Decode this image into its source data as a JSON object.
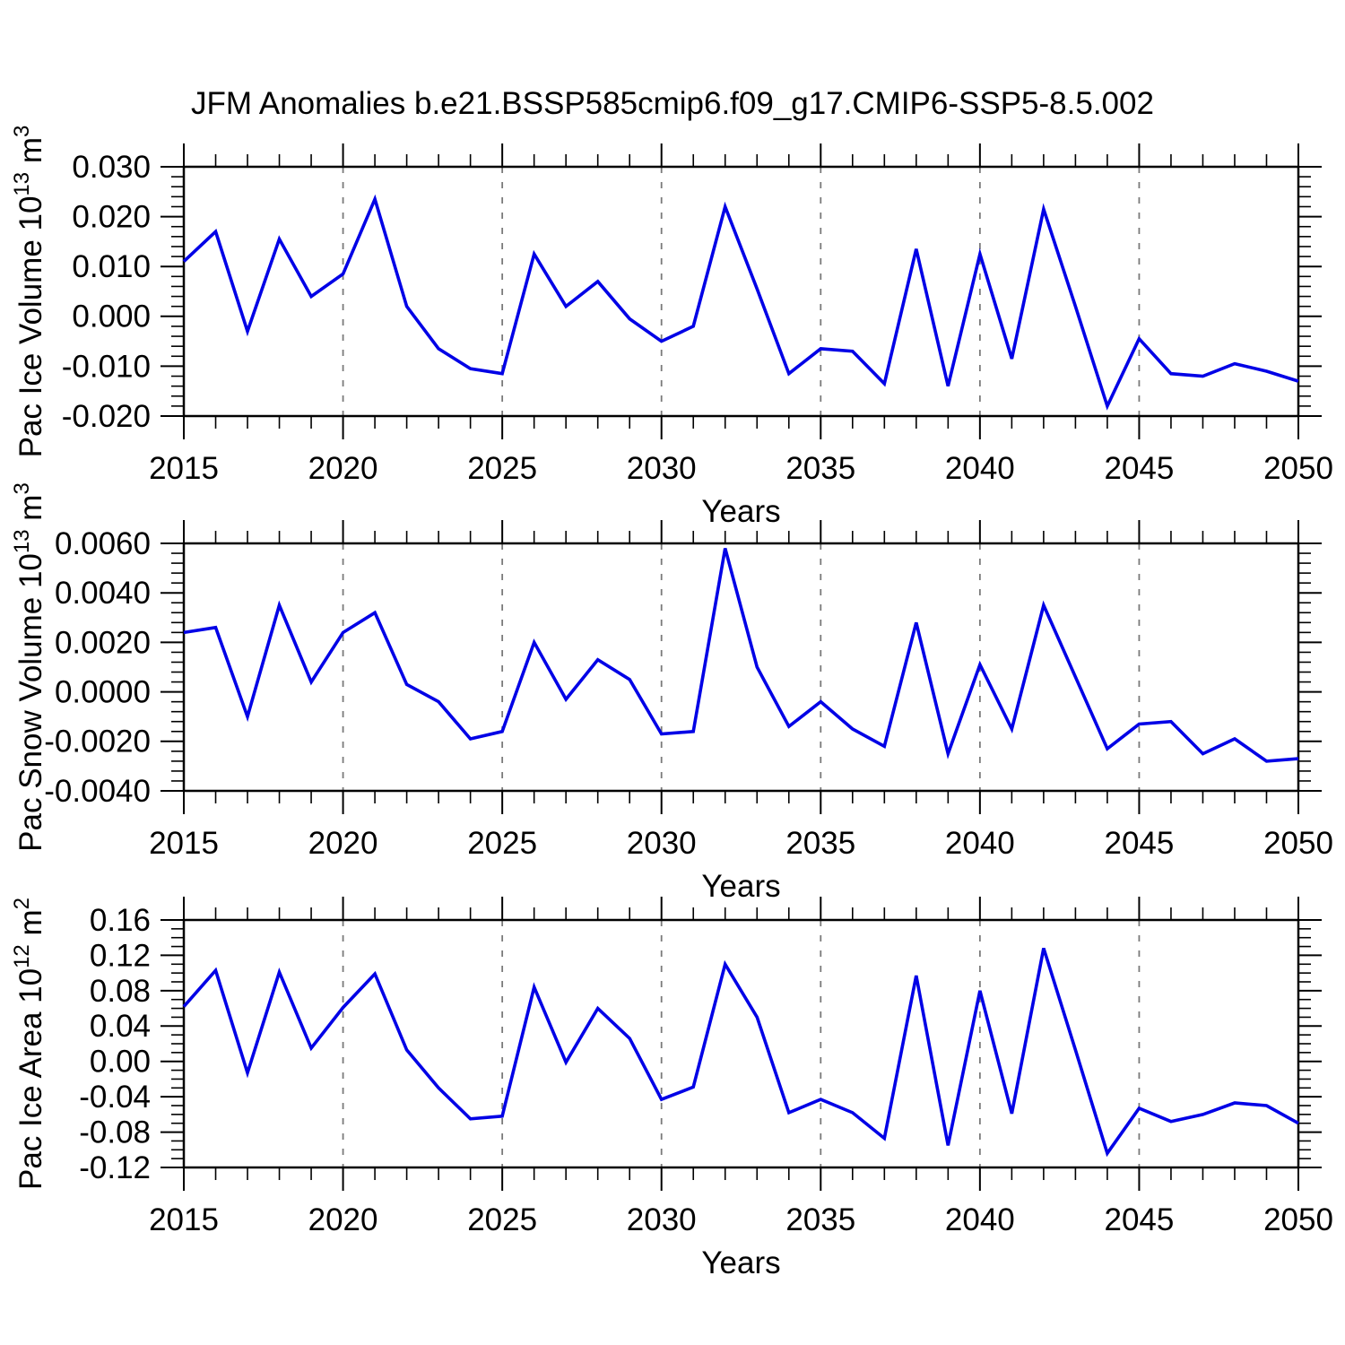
{
  "title": "JFM Anomalies b.e21.BSSP585cmip6.f09_g17.CMIP6-SSP5-8.5.002",
  "colors": {
    "line": "#0000e6",
    "axis": "#000000",
    "grid": "#7a7a7a",
    "background": "#ffffff"
  },
  "x_axis": {
    "label": "Years",
    "range": [
      2015,
      2050
    ],
    "major_tick_values": [
      2015,
      2020,
      2025,
      2030,
      2035,
      2040,
      2045,
      2050
    ],
    "major_tick_labels": [
      "2015",
      "2020",
      "2025",
      "2030",
      "2035",
      "2040",
      "2045",
      "2050"
    ],
    "minor_step": 1,
    "grid_values": [
      2020,
      2025,
      2030,
      2035,
      2040,
      2045
    ]
  },
  "years": [
    2015,
    2016,
    2017,
    2018,
    2019,
    2020,
    2021,
    2022,
    2023,
    2024,
    2025,
    2026,
    2027,
    2028,
    2029,
    2030,
    2031,
    2032,
    2033,
    2034,
    2035,
    2036,
    2037,
    2038,
    2039,
    2040,
    2041,
    2042,
    2043,
    2044,
    2045,
    2046,
    2047,
    2048,
    2049,
    2050
  ],
  "chart_data": [
    {
      "type": "line",
      "name": "pac-ice-volume",
      "ylabel_parts": [
        "Pac Ice Volume 10",
        "13",
        " m",
        "3"
      ],
      "xlabel": "Years",
      "ylim": [
        -0.02,
        0.03
      ],
      "y_major_tick_values": [
        0.03,
        0.02,
        0.01,
        0.0,
        -0.01,
        -0.02
      ],
      "y_major_tick_labels": [
        "0.030",
        "0.020",
        "0.010",
        "0.000",
        "-0.010",
        "-0.020"
      ],
      "y_minor_step": 0.002,
      "grid": "vertical-dashed",
      "legend": "none",
      "values": [
        0.011,
        0.017,
        -0.003,
        0.0155,
        0.004,
        0.0085,
        0.0235,
        0.002,
        -0.0065,
        -0.0105,
        -0.0115,
        0.0125,
        0.002,
        0.007,
        -0.0005,
        -0.005,
        -0.002,
        0.022,
        0.0055,
        -0.0115,
        -0.0065,
        -0.007,
        -0.0135,
        0.0135,
        -0.014,
        0.0125,
        -0.0085,
        0.0215,
        0.002,
        -0.018,
        -0.0045,
        -0.0115,
        -0.012,
        -0.0095,
        -0.011,
        -0.013
      ]
    },
    {
      "type": "line",
      "name": "pac-snow-volume",
      "ylabel_parts": [
        "Pac Snow Volume 10",
        "13",
        " m",
        "3"
      ],
      "xlabel": "Years",
      "ylim": [
        -0.004,
        0.006
      ],
      "y_major_tick_values": [
        0.006,
        0.004,
        0.002,
        0.0,
        -0.002,
        -0.004
      ],
      "y_major_tick_labels": [
        "0.0060",
        "0.0040",
        "0.0020",
        "0.0000",
        "-0.0020",
        "-0.0040"
      ],
      "y_minor_step": 0.0004,
      "grid": "vertical-dashed",
      "legend": "none",
      "values": [
        0.0024,
        0.0026,
        -0.001,
        0.0035,
        0.0004,
        0.0024,
        0.0032,
        0.0003,
        -0.0004,
        -0.0019,
        -0.0016,
        0.002,
        -0.0003,
        0.0013,
        0.0005,
        -0.0017,
        -0.0016,
        0.0058,
        0.001,
        -0.0014,
        -0.0004,
        -0.0015,
        -0.0022,
        0.0028,
        -0.0025,
        0.0011,
        -0.0015,
        0.0035,
        0.0006,
        -0.0023,
        -0.0013,
        -0.0012,
        -0.0025,
        -0.0019,
        -0.0028,
        -0.0027
      ]
    },
    {
      "type": "line",
      "name": "pac-ice-area",
      "ylabel_parts": [
        "Pac Ice Area 10",
        "12",
        " m",
        "2"
      ],
      "xlabel": "Years",
      "ylim": [
        -0.12,
        0.16
      ],
      "y_major_tick_values": [
        0.16,
        0.12,
        0.08,
        0.04,
        0.0,
        -0.04,
        -0.08,
        -0.12
      ],
      "y_major_tick_labels": [
        "0.16",
        "0.12",
        "0.08",
        "0.04",
        "0.00",
        "-0.04",
        "-0.08",
        "-0.12"
      ],
      "y_minor_step": 0.01,
      "grid": "vertical-dashed",
      "legend": "none",
      "values": [
        0.062,
        0.103,
        -0.013,
        0.101,
        0.015,
        0.061,
        0.099,
        0.013,
        -0.03,
        -0.065,
        -0.062,
        0.084,
        -0.001,
        0.06,
        0.026,
        -0.043,
        -0.029,
        0.11,
        0.05,
        -0.058,
        -0.043,
        -0.058,
        -0.087,
        0.097,
        -0.095,
        0.08,
        -0.059,
        0.128,
        0.013,
        -0.104,
        -0.053,
        -0.068,
        -0.06,
        -0.047,
        -0.05,
        -0.07
      ]
    }
  ]
}
